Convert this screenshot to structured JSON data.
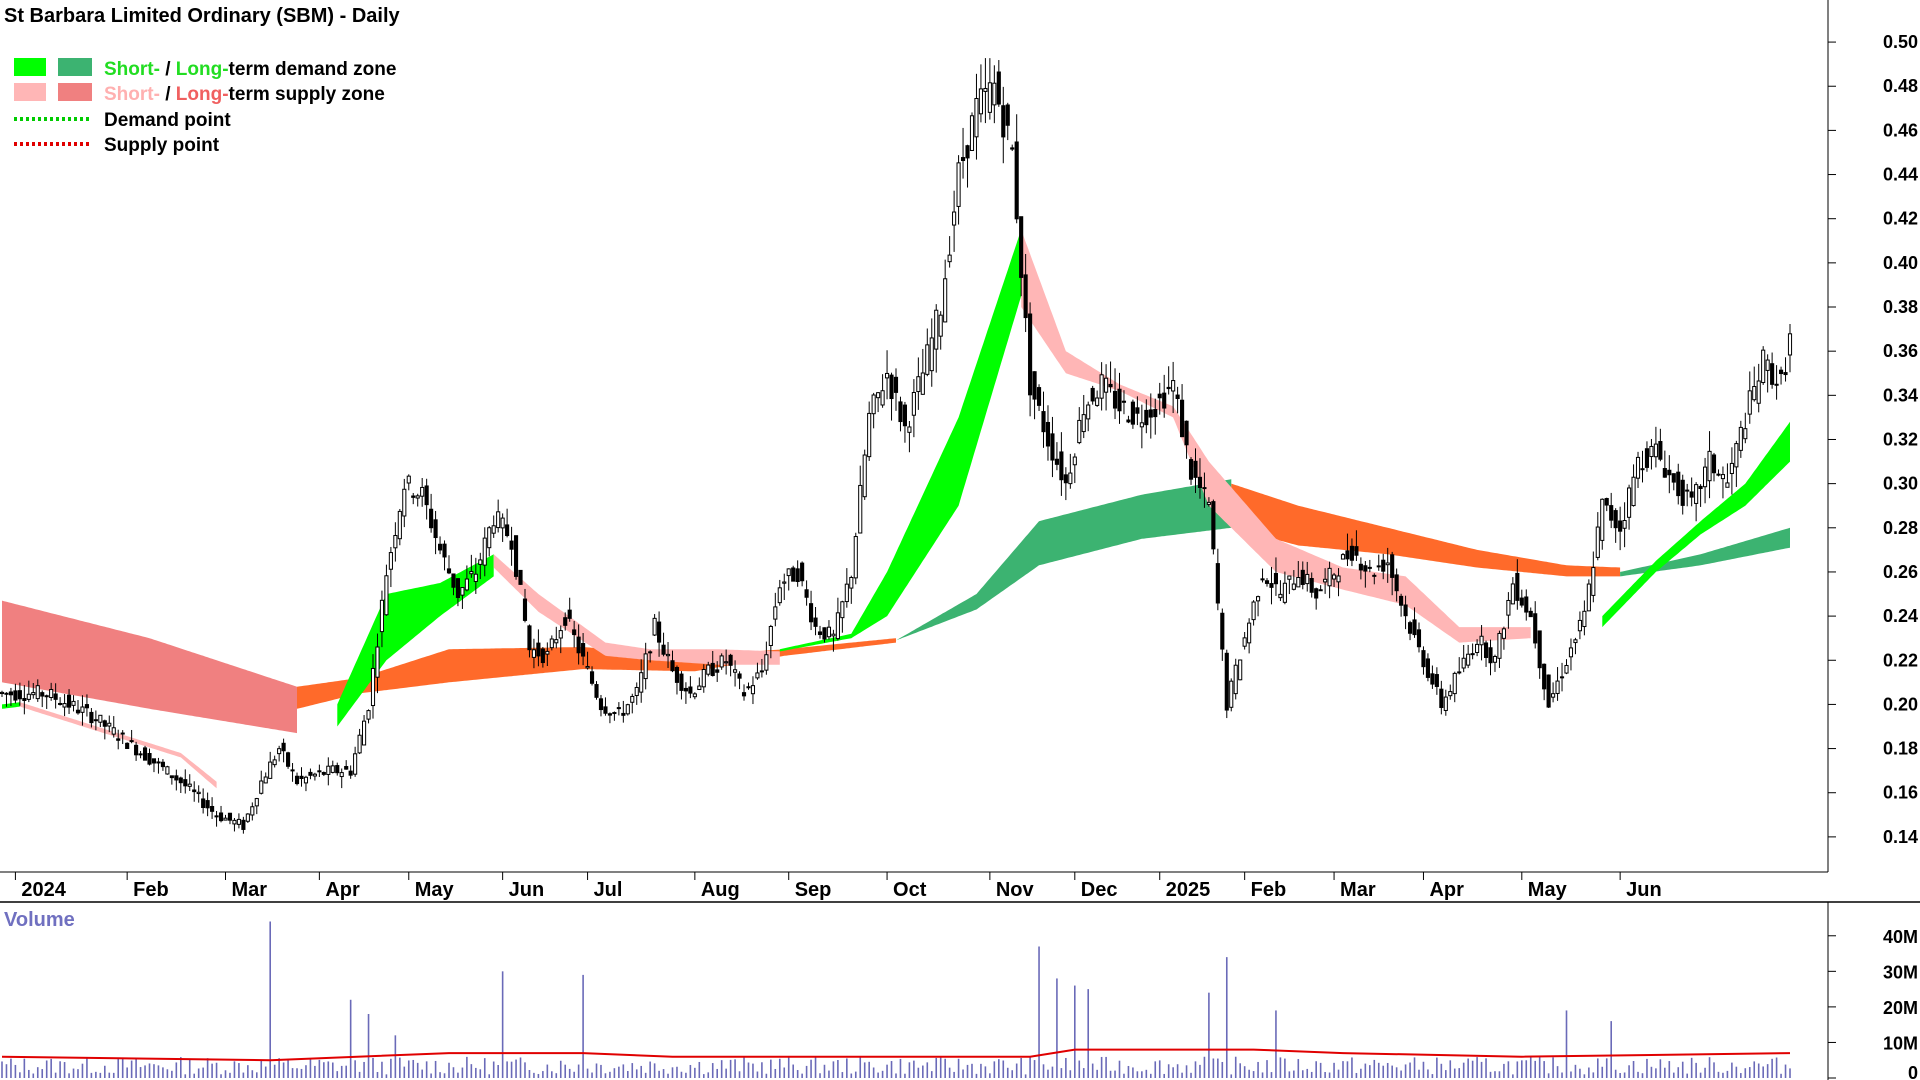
{
  "colors": {
    "demand_short": "#00ff00",
    "demand_long": "#3cb371",
    "supply_short": "#ffb6b6",
    "supply_long": "#f08080",
    "supply_long_dark": "#ff6a2a",
    "volume_bar": "#6a6ab8",
    "volume_ma": "#e00000",
    "demand_point": "#00cc00",
    "supply_point": "#e00000"
  },
  "legend": [
    {
      "short_word": "Short-",
      "sep": " / ",
      "long_word": "Long-",
      "rest": "term demand zone",
      "short_color": "#00ff00",
      "long_color": "#3cb371",
      "text_short_color": "#22dd22",
      "text_long_color": "#22dd22"
    },
    {
      "short_word": "Short-",
      "sep": " / ",
      "long_word": "Long-",
      "rest": "term supply zone",
      "short_color": "#ffb6b6",
      "long_color": "#f08080",
      "text_short_color": "#ffb0b0",
      "text_long_color": "#f06060"
    },
    {
      "line_label": "Demand point",
      "line_color": "#00cc00"
    },
    {
      "line_label": "Supply point",
      "line_color": "#e00000"
    }
  ],
  "chart_data": {
    "type": "candlestick",
    "title": "St Barbara Limited Ordinary (SBM) - Daily",
    "ylim": [
      0.125,
      0.51
    ],
    "y_ticks": [
      "0.50",
      "0.48",
      "0.46",
      "0.44",
      "0.42",
      "0.40",
      "0.38",
      "0.36",
      "0.34",
      "0.32",
      "0.30",
      "0.28",
      "0.26",
      "0.24",
      "0.22",
      "0.20",
      "0.18",
      "0.16",
      "0.14"
    ],
    "x_labels": [
      "2024",
      "Feb",
      "Mar",
      "Apr",
      "May",
      "Jun",
      "Jul",
      "Aug",
      "Sep",
      "Oct",
      "Nov",
      "Dec",
      "2025",
      "Feb",
      "Mar",
      "Apr",
      "May",
      "Jun"
    ],
    "price_path": [
      [
        0,
        0.205
      ],
      [
        10,
        0.205
      ],
      [
        20,
        0.195
      ],
      [
        30,
        0.18
      ],
      [
        40,
        0.165
      ],
      [
        48,
        0.15
      ],
      [
        54,
        0.145
      ],
      [
        58,
        0.165
      ],
      [
        62,
        0.18
      ],
      [
        66,
        0.165
      ],
      [
        70,
        0.168
      ],
      [
        74,
        0.17
      ],
      [
        78,
        0.17
      ],
      [
        82,
        0.2
      ],
      [
        86,
        0.26
      ],
      [
        90,
        0.3
      ],
      [
        94,
        0.295
      ],
      [
        98,
        0.27
      ],
      [
        102,
        0.25
      ],
      [
        106,
        0.26
      ],
      [
        110,
        0.285
      ],
      [
        114,
        0.275
      ],
      [
        118,
        0.225
      ],
      [
        122,
        0.222
      ],
      [
        126,
        0.24
      ],
      [
        130,
        0.22
      ],
      [
        134,
        0.2
      ],
      [
        138,
        0.195
      ],
      [
        142,
        0.205
      ],
      [
        146,
        0.235
      ],
      [
        150,
        0.215
      ],
      [
        154,
        0.205
      ],
      [
        158,
        0.215
      ],
      [
        162,
        0.22
      ],
      [
        166,
        0.205
      ],
      [
        170,
        0.215
      ],
      [
        174,
        0.255
      ],
      [
        178,
        0.26
      ],
      [
        182,
        0.235
      ],
      [
        186,
        0.23
      ],
      [
        190,
        0.26
      ],
      [
        194,
        0.33
      ],
      [
        198,
        0.35
      ],
      [
        202,
        0.325
      ],
      [
        206,
        0.35
      ],
      [
        210,
        0.38
      ],
      [
        214,
        0.44
      ],
      [
        218,
        0.47
      ],
      [
        222,
        0.48
      ],
      [
        226,
        0.45
      ],
      [
        230,
        0.345
      ],
      [
        234,
        0.32
      ],
      [
        238,
        0.3
      ],
      [
        242,
        0.335
      ],
      [
        246,
        0.345
      ],
      [
        250,
        0.335
      ],
      [
        254,
        0.33
      ],
      [
        258,
        0.335
      ],
      [
        262,
        0.345
      ],
      [
        266,
        0.305
      ],
      [
        270,
        0.29
      ],
      [
        274,
        0.2
      ],
      [
        278,
        0.23
      ],
      [
        282,
        0.26
      ],
      [
        286,
        0.25
      ],
      [
        290,
        0.26
      ],
      [
        294,
        0.25
      ],
      [
        298,
        0.26
      ],
      [
        302,
        0.27
      ],
      [
        306,
        0.26
      ],
      [
        310,
        0.265
      ],
      [
        314,
        0.24
      ],
      [
        318,
        0.22
      ],
      [
        322,
        0.2
      ],
      [
        326,
        0.215
      ],
      [
        330,
        0.23
      ],
      [
        334,
        0.22
      ],
      [
        338,
        0.255
      ],
      [
        342,
        0.24
      ],
      [
        346,
        0.2
      ],
      [
        350,
        0.22
      ],
      [
        354,
        0.24
      ],
      [
        358,
        0.29
      ],
      [
        362,
        0.28
      ],
      [
        366,
        0.31
      ],
      [
        370,
        0.315
      ],
      [
        374,
        0.3
      ],
      [
        378,
        0.29
      ],
      [
        382,
        0.31
      ],
      [
        386,
        0.3
      ],
      [
        390,
        0.33
      ],
      [
        394,
        0.355
      ],
      [
        398,
        0.345
      ],
      [
        400,
        0.365
      ]
    ],
    "zones": {
      "long_supply_1": [
        [
          0,
          0.247,
          0.21
        ],
        [
          33,
          0.23,
          0.198
        ],
        [
          66,
          0.208,
          0.187
        ]
      ],
      "long_supply_2": [
        [
          66,
          0.208,
          0.198
        ],
        [
          80,
          0.212,
          0.205
        ],
        [
          100,
          0.225,
          0.21
        ],
        [
          130,
          0.226,
          0.216
        ],
        [
          155,
          0.222,
          0.215
        ],
        [
          175,
          0.225,
          0.222
        ],
        [
          200,
          0.23,
          0.228
        ]
      ],
      "long_demand": [
        [
          200,
          0.229,
          0.229
        ],
        [
          218,
          0.25,
          0.243
        ],
        [
          232,
          0.283,
          0.263
        ],
        [
          255,
          0.295,
          0.275
        ],
        [
          275,
          0.302,
          0.28
        ]
      ],
      "long_supply_3": [
        [
          275,
          0.3,
          0.28
        ],
        [
          290,
          0.29,
          0.272
        ],
        [
          310,
          0.28,
          0.268
        ],
        [
          330,
          0.27,
          0.262
        ],
        [
          350,
          0.263,
          0.258
        ],
        [
          362,
          0.262,
          0.258
        ]
      ],
      "long_demand_2": [
        [
          362,
          0.26,
          0.258
        ],
        [
          380,
          0.268,
          0.263
        ],
        [
          400,
          0.28,
          0.271
        ]
      ],
      "short_demand_1": [
        [
          0,
          0.2,
          0.198
        ],
        [
          4,
          0.201,
          0.199
        ]
      ],
      "short_supply_1": [
        [
          4,
          0.201,
          0.199
        ],
        [
          40,
          0.178,
          0.176
        ],
        [
          48,
          0.165,
          0.162
        ]
      ],
      "short_demand_2": [
        [
          75,
          0.2,
          0.19
        ],
        [
          86,
          0.25,
          0.22
        ],
        [
          98,
          0.255,
          0.24
        ],
        [
          110,
          0.268,
          0.258
        ]
      ],
      "short_supply_2": [
        [
          110,
          0.268,
          0.262
        ],
        [
          120,
          0.25,
          0.242
        ],
        [
          135,
          0.228,
          0.222
        ],
        [
          145,
          0.225,
          0.22
        ],
        [
          160,
          0.225,
          0.218
        ],
        [
          174,
          0.224,
          0.218
        ]
      ],
      "short_demand_3": [
        [
          174,
          0.225,
          0.224
        ],
        [
          190,
          0.232,
          0.23
        ],
        [
          198,
          0.26,
          0.24
        ],
        [
          214,
          0.33,
          0.29
        ],
        [
          228,
          0.415,
          0.385
        ]
      ],
      "short_supply_3": [
        [
          228,
          0.415,
          0.38
        ],
        [
          238,
          0.36,
          0.35
        ],
        [
          250,
          0.345,
          0.342
        ],
        [
          262,
          0.335,
          0.33
        ],
        [
          270,
          0.31,
          0.29
        ],
        [
          285,
          0.275,
          0.26
        ],
        [
          300,
          0.262,
          0.252
        ],
        [
          314,
          0.258,
          0.245
        ],
        [
          326,
          0.235,
          0.228
        ],
        [
          342,
          0.235,
          0.23
        ]
      ],
      "short_demand_4": [
        [
          358,
          0.24,
          0.235
        ],
        [
          370,
          0.265,
          0.26
        ],
        [
          380,
          0.283,
          0.277
        ],
        [
          390,
          0.3,
          0.29
        ],
        [
          400,
          0.328,
          0.31
        ]
      ]
    },
    "volume": {
      "label": "Volume",
      "y_ticks": [
        "40M",
        "30M",
        "20M",
        "10M",
        "0"
      ],
      "ylim": [
        0,
        45
      ],
      "spikes": [
        [
          60,
          44
        ],
        [
          78,
          22
        ],
        [
          82,
          18
        ],
        [
          88,
          12
        ],
        [
          112,
          30
        ],
        [
          130,
          29
        ],
        [
          232,
          37
        ],
        [
          236,
          28
        ],
        [
          240,
          26
        ],
        [
          243,
          25
        ],
        [
          270,
          24
        ],
        [
          274,
          34
        ],
        [
          285,
          19
        ],
        [
          350,
          19
        ],
        [
          360,
          16
        ]
      ],
      "ma_path": [
        [
          0,
          6
        ],
        [
          60,
          5
        ],
        [
          100,
          7
        ],
        [
          130,
          7
        ],
        [
          150,
          6
        ],
        [
          200,
          6
        ],
        [
          230,
          6
        ],
        [
          240,
          8
        ],
        [
          280,
          8
        ],
        [
          300,
          7
        ],
        [
          340,
          6
        ],
        [
          400,
          7
        ]
      ]
    }
  }
}
